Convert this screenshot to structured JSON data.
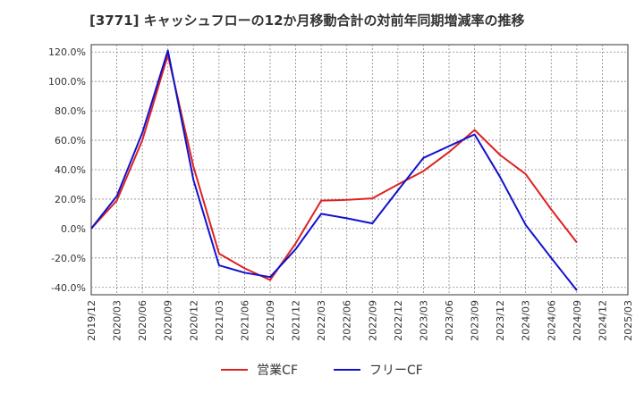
{
  "title": "[3771]  キャッシュフローの12か月移動合計の対前年同期増減率の推移",
  "chart_data": {
    "type": "line",
    "x": [
      "2019/12",
      "2020/03",
      "2020/06",
      "2020/09",
      "2020/12",
      "2021/03",
      "2021/06",
      "2021/09",
      "2021/12",
      "2022/03",
      "2022/06",
      "2022/09",
      "2022/12",
      "2023/03",
      "2023/06",
      "2023/09",
      "2023/12",
      "2024/03",
      "2024/06",
      "2024/09",
      "2024/12",
      "2025/03"
    ],
    "y_ticks": [
      "120.0%",
      "100.0%",
      "80.0%",
      "60.0%",
      "40.0%",
      "20.0%",
      "0.0%",
      "-20.0%",
      "-40.0%"
    ],
    "ylim": [
      -45,
      125
    ],
    "grid": true,
    "legend_position": "bottom",
    "series": [
      {
        "name": "営業CF",
        "color": "#dd2222",
        "values": [
          0,
          19,
          60,
          118,
          42,
          -17,
          -27,
          -35,
          -10,
          19,
          19.5,
          20.5,
          30,
          39,
          52,
          67,
          50,
          37,
          13,
          -9.5,
          null,
          null
        ]
      },
      {
        "name": "フリーCF",
        "color": "#1111cc",
        "values": [
          0,
          22,
          65,
          121,
          33,
          -25,
          -30,
          -33,
          -14,
          10,
          7,
          3.5,
          26,
          48,
          56,
          64,
          35,
          2.5,
          -20,
          -42,
          null,
          null
        ]
      }
    ]
  }
}
